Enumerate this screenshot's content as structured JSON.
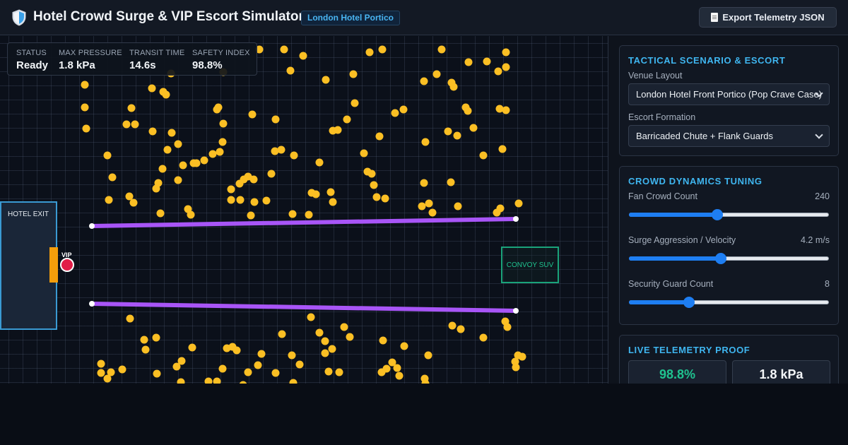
{
  "header": {
    "title": "Hotel Crowd Surge & VIP Escort Simulator",
    "venue_badge": "London Hotel Portico",
    "export_label": "Export Telemetry JSON"
  },
  "stats": {
    "status": {
      "label": "STATUS",
      "value": "Ready"
    },
    "max_pressure": {
      "label": "MAX PRESSURE",
      "value": "1.8 kPa"
    },
    "transit_time": {
      "label": "TRANSIT TIME",
      "value": "14.6s"
    },
    "safety_index": {
      "label": "SAFETY INDEX",
      "value": "98.8%"
    }
  },
  "map": {
    "hotel_exit_label": "HOTEL EXIT",
    "vip_label": "VIP",
    "convoy_label": "CONVOY SUV"
  },
  "scenario": {
    "title": "TACTICAL SCENARIO & ESCORT",
    "venue_layout_label": "Venue Layout",
    "venue_layout_value": "London Hotel Front Portico (Pop Crave Case)",
    "escort_formation_label": "Escort Formation",
    "escort_formation_value": "Barricaded Chute + Flank Guards"
  },
  "tuning": {
    "title": "CROWD DYNAMICS TUNING",
    "fan_count": {
      "label": "Fan Crowd Count",
      "value": "240",
      "level": 0.44
    },
    "surge": {
      "label": "Surge Aggression / Velocity",
      "value": "4.2 m/s",
      "level": 0.46
    },
    "guards": {
      "label": "Security Guard Count",
      "value": "8",
      "level": 0.3
    }
  },
  "telemetry": {
    "title": "LIVE TELEMETRY PROOF",
    "safety_index": "98.8%",
    "max_pressure": "1.8 kPa"
  },
  "colors": {
    "accent": "#3fb6f0",
    "crowd_dot": "#fbbf24",
    "barricade": "#a855f7",
    "vip": "#e11d48",
    "door": "#f59e0b",
    "convoy": "#1fc28f",
    "slider": "#1e7ef2",
    "safety_green": "#1fc28f"
  },
  "icons": {
    "header": "shield-icon",
    "export": "document-icon"
  }
}
